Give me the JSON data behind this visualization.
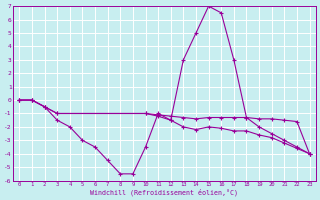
{
  "background_color": "#c8eef0",
  "grid_color": "#b0d8dc",
  "line_color": "#990099",
  "xlim": [
    -0.5,
    23.5
  ],
  "ylim": [
    -6,
    7
  ],
  "xtick_vals": [
    0,
    1,
    2,
    3,
    4,
    5,
    6,
    7,
    8,
    9,
    10,
    11,
    12,
    13,
    14,
    15,
    16,
    17,
    18,
    19,
    20,
    21,
    22,
    23
  ],
  "ytick_vals": [
    7,
    6,
    5,
    4,
    3,
    2,
    1,
    0,
    -1,
    -2,
    -3,
    -4,
    -5,
    -6
  ],
  "xlabel": "Windchill (Refroidissement éolien,°C)",
  "s1x": [
    0,
    1,
    2,
    3,
    4,
    5,
    6,
    7,
    8,
    9,
    10,
    11,
    12,
    13,
    14,
    15,
    16,
    17,
    18,
    19,
    20,
    21,
    22,
    23
  ],
  "s1y": [
    0,
    0,
    -0.5,
    -1.5,
    -2.0,
    -3.0,
    -3.5,
    -4.5,
    -5.5,
    -5.5,
    -3.5,
    -1.0,
    -1.5,
    3.0,
    5.0,
    7.0,
    6.5,
    3.0,
    -1.3,
    -2.0,
    -2.5,
    -3.0,
    -3.5,
    -4.0
  ],
  "s2x": [
    0,
    1,
    2,
    3,
    10,
    11,
    12,
    13,
    14,
    15,
    16,
    17,
    18,
    19,
    20,
    21,
    22,
    23
  ],
  "s2y": [
    0,
    0,
    -0.5,
    -1.0,
    -1.0,
    -1.1,
    -1.2,
    -1.3,
    -1.4,
    -1.3,
    -1.3,
    -1.3,
    -1.3,
    -1.4,
    -1.4,
    -1.5,
    -1.6,
    -4.0
  ],
  "s3x": [
    0,
    1,
    2,
    3,
    10,
    11,
    12,
    13,
    14,
    15,
    16,
    17,
    18,
    19,
    20,
    21,
    22,
    23
  ],
  "s3y": [
    0,
    0,
    -0.5,
    -1.0,
    -1.0,
    -1.2,
    -1.5,
    -2.0,
    -2.2,
    -2.0,
    -2.1,
    -2.3,
    -2.3,
    -2.6,
    -2.8,
    -3.2,
    -3.6,
    -4.0
  ]
}
